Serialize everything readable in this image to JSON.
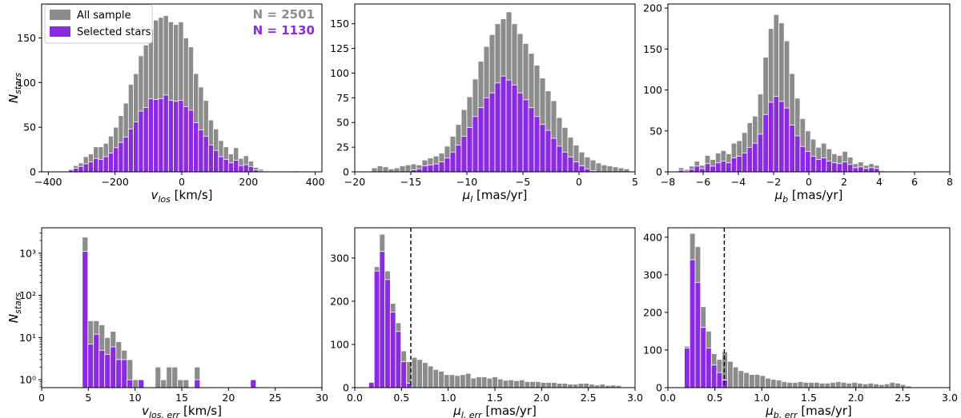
{
  "colors": {
    "all_sample": "#8c8c8c",
    "selected": "#8a2be2",
    "n_all_text": "#8c8c8c",
    "n_selected_text": "#8a2be2",
    "cut_line": "#000000"
  },
  "legend": {
    "all_label": "All sample",
    "selected_label": "Selected stars",
    "n_all": "N = 2501",
    "n_selected": "N = 1130",
    "placement": "upper-left"
  },
  "chart_data": [
    {
      "id": "vlos",
      "type": "bar",
      "xlabel": "v_los [km/s]",
      "xlabel_main": "v",
      "xlabel_sub": "los",
      "xlabel_unit": " [km/s]",
      "ylabel": "N_stars",
      "ylabel_main": "N",
      "ylabel_sub": "stars",
      "xlim": [
        -420,
        420
      ],
      "ylim": [
        0,
        188
      ],
      "yscale": "linear",
      "xticks": [
        -400,
        -200,
        0,
        200,
        400
      ],
      "xtick_labels": [
        "−400",
        "−200",
        "0",
        "200",
        "400"
      ],
      "yticks": [
        0,
        50,
        100,
        150
      ],
      "ytick_labels": [
        "0",
        "50",
        "100",
        "150"
      ],
      "bin_start": -340,
      "bin_width": 15,
      "series": [
        {
          "name": "All sample",
          "values": [
            3,
            7,
            10,
            17,
            20,
            28,
            28,
            32,
            40,
            50,
            63,
            77,
            98,
            110,
            130,
            142,
            160,
            170,
            173,
            175,
            168,
            165,
            168,
            150,
            140,
            110,
            95,
            80,
            58,
            48,
            35,
            28,
            20,
            27,
            15,
            18,
            12,
            5,
            3,
            1,
            0,
            0,
            0,
            0,
            0,
            1,
            0
          ]
        },
        {
          "name": "Selected stars",
          "values": [
            2,
            4,
            6,
            9,
            11,
            15,
            14,
            17,
            21,
            27,
            33,
            39,
            48,
            56,
            68,
            72,
            82,
            81,
            82,
            86,
            80,
            79,
            80,
            73,
            69,
            55,
            47,
            40,
            30,
            24,
            17,
            14,
            10,
            13,
            7,
            8,
            6,
            2,
            1,
            0,
            0,
            0,
            0,
            0,
            0,
            0,
            0
          ]
        }
      ]
    },
    {
      "id": "mul",
      "type": "bar",
      "xlabel": "μ_l [mas/yr]",
      "xlabel_main": "μ",
      "xlabel_sub": "l",
      "xlabel_unit": " [mas/yr]",
      "ylabel": "",
      "xlim": [
        -20,
        5
      ],
      "ylim": [
        0,
        170
      ],
      "yscale": "linear",
      "xticks": [
        -20,
        -15,
        -10,
        -5,
        0,
        5
      ],
      "xtick_labels": [
        "−20",
        "−15",
        "−10",
        "−5",
        "0",
        "5"
      ],
      "yticks": [
        0,
        25,
        50,
        75,
        100,
        125,
        150
      ],
      "ytick_labels": [
        "0",
        "25",
        "50",
        "75",
        "100",
        "125",
        "150"
      ],
      "bin_start": -18.5,
      "bin_width": 0.5,
      "series": [
        {
          "name": "All sample",
          "values": [
            4,
            6,
            5,
            3,
            4,
            6,
            7,
            8,
            7,
            12,
            14,
            16,
            19,
            26,
            36,
            48,
            63,
            76,
            94,
            112,
            127,
            139,
            150,
            155,
            162,
            150,
            140,
            130,
            120,
            108,
            95,
            82,
            72,
            55,
            45,
            35,
            27,
            20,
            15,
            12,
            9,
            7,
            6,
            5,
            4,
            3
          ]
        },
        {
          "name": "Selected stars",
          "values": [
            0,
            0,
            0,
            0,
            0,
            0,
            0,
            2,
            3,
            6,
            7,
            8,
            10,
            14,
            20,
            27,
            36,
            45,
            56,
            65,
            75,
            80,
            90,
            97,
            93,
            88,
            80,
            73,
            65,
            56,
            48,
            42,
            34,
            26,
            20,
            15,
            10,
            6,
            3,
            1,
            0,
            0,
            0,
            0,
            0,
            0
          ]
        }
      ]
    },
    {
      "id": "mub",
      "type": "bar",
      "xlabel": "μ_b [mas/yr]",
      "xlabel_main": "μ",
      "xlabel_sub": "b",
      "xlabel_unit": " [mas/yr]",
      "ylabel": "",
      "xlim": [
        -8,
        8
      ],
      "ylim": [
        0,
        205
      ],
      "yscale": "linear",
      "xticks": [
        -8,
        -6,
        -4,
        -2,
        0,
        2,
        4,
        6,
        8
      ],
      "xtick_labels": [
        "−8",
        "−6",
        "−4",
        "−2",
        "0",
        "2",
        "4",
        "6",
        "8"
      ],
      "yticks": [
        0,
        50,
        100,
        150,
        200
      ],
      "ytick_labels": [
        "0",
        "50",
        "100",
        "150",
        "200"
      ],
      "bin_start": -7.4,
      "bin_width": 0.3,
      "series": [
        {
          "name": "All sample",
          "values": [
            5,
            3,
            7,
            13,
            8,
            20,
            15,
            23,
            26,
            22,
            35,
            38,
            48,
            60,
            68,
            95,
            140,
            175,
            192,
            182,
            160,
            120,
            90,
            65,
            50,
            40,
            30,
            35,
            28,
            22,
            20,
            25,
            18,
            10,
            12,
            8,
            10,
            8,
            2
          ]
        },
        {
          "name": "Selected stars",
          "values": [
            2,
            1,
            3,
            7,
            4,
            10,
            7,
            11,
            13,
            11,
            17,
            19,
            23,
            30,
            35,
            46,
            70,
            85,
            92,
            86,
            78,
            57,
            44,
            31,
            25,
            19,
            15,
            17,
            13,
            11,
            10,
            12,
            9,
            5,
            6,
            4,
            5,
            4,
            1
          ]
        }
      ]
    },
    {
      "id": "vlos_err",
      "type": "bar",
      "xlabel": "v_los,err [km/s]",
      "xlabel_main": "v",
      "xlabel_sub": "los, err",
      "xlabel_unit": " [km/s]",
      "ylabel": "N_stars",
      "ylabel_main": "N",
      "ylabel_sub": "stars",
      "xlim": [
        0,
        30
      ],
      "ylim": [
        0.65,
        4000
      ],
      "yscale": "log",
      "xticks": [
        0,
        5,
        10,
        15,
        20,
        25,
        30
      ],
      "xtick_labels": [
        "0",
        "5",
        "10",
        "15",
        "20",
        "25",
        "30"
      ],
      "yticks": [
        1,
        10,
        100,
        1000
      ],
      "ytick_labels": [
        "10⁰",
        "10¹",
        "10²",
        "10³"
      ],
      "bin_start": 4.35,
      "bin_width": 0.6,
      "series": [
        {
          "name": "All sample",
          "values": [
            2400,
            25,
            25,
            20,
            10,
            14,
            8,
            5,
            3,
            1,
            0,
            0,
            0,
            2,
            1,
            2,
            2,
            1,
            1,
            0,
            2,
            0,
            0,
            0,
            0,
            0,
            0,
            0,
            0,
            0,
            1
          ]
        },
        {
          "name": "Selected stars",
          "values": [
            1100,
            7,
            12,
            5,
            4,
            6,
            3,
            3,
            1,
            0,
            1,
            0,
            0,
            0,
            0,
            0,
            0,
            0,
            0,
            0,
            1,
            0,
            0,
            0,
            0,
            0,
            0,
            0,
            0,
            0,
            1
          ]
        }
      ]
    },
    {
      "id": "mul_err",
      "type": "bar",
      "xlabel": "μ_l,err [mas/yr]",
      "xlabel_main": "μ",
      "xlabel_sub": "l, err",
      "xlabel_unit": " [mas/yr]",
      "ylabel": "",
      "xlim": [
        0,
        3
      ],
      "ylim": [
        0,
        370
      ],
      "yscale": "linear",
      "xticks": [
        0,
        0.5,
        1,
        1.5,
        2,
        2.5,
        3
      ],
      "xtick_labels": [
        "0.0",
        "0.5",
        "1.0",
        "1.5",
        "2.0",
        "2.5",
        "3.0"
      ],
      "yticks": [
        0,
        100,
        200,
        300
      ],
      "ytick_labels": [
        "0",
        "100",
        "200",
        "300"
      ],
      "cut": 0.6,
      "bin_start": 0.15,
      "bin_width": 0.0575,
      "series": [
        {
          "name": "All sample",
          "values": [
            12,
            280,
            355,
            270,
            195,
            150,
            85,
            60,
            70,
            65,
            58,
            50,
            42,
            38,
            30,
            30,
            28,
            30,
            33,
            22,
            25,
            25,
            22,
            25,
            20,
            17,
            18,
            16,
            18,
            14,
            14,
            14,
            12,
            12,
            12,
            10,
            10,
            8,
            8,
            10,
            10,
            8,
            6,
            8,
            5,
            6,
            5
          ]
        },
        {
          "name": "Selected stars",
          "values": [
            12,
            270,
            315,
            250,
            175,
            130,
            60,
            10,
            0,
            0,
            0,
            0,
            0,
            0,
            0,
            0,
            0,
            0,
            0,
            0,
            0,
            0,
            0,
            0,
            0,
            0,
            0,
            0,
            0,
            0,
            0,
            0,
            0,
            0,
            0,
            0,
            0,
            0,
            0,
            0,
            0,
            0,
            0,
            0,
            0,
            0,
            0
          ]
        }
      ]
    },
    {
      "id": "mub_err",
      "type": "bar",
      "xlabel": "μ_b,err [mas/yr]",
      "xlabel_main": "μ",
      "xlabel_sub": "b, err",
      "xlabel_unit": " [mas/yr]",
      "ylabel": "",
      "xlim": [
        0,
        3
      ],
      "ylim": [
        0,
        425
      ],
      "yscale": "linear",
      "xticks": [
        0,
        0.5,
        1,
        1.5,
        2,
        2.5,
        3
      ],
      "xtick_labels": [
        "0.0",
        "0.5",
        "1.0",
        "1.5",
        "2.0",
        "2.5",
        "3.0"
      ],
      "yticks": [
        0,
        100,
        200,
        300,
        400
      ],
      "ytick_labels": [
        "0",
        "100",
        "200",
        "300",
        "400"
      ],
      "cut": 0.6,
      "bin_start": 0.175,
      "bin_width": 0.0575,
      "series": [
        {
          "name": "All sample",
          "values": [
            110,
            410,
            375,
            215,
            150,
            90,
            75,
            95,
            70,
            55,
            45,
            40,
            35,
            35,
            32,
            25,
            22,
            20,
            16,
            14,
            14,
            16,
            14,
            14,
            14,
            12,
            12,
            14,
            16,
            14,
            12,
            14,
            12,
            10,
            12,
            10,
            8,
            10,
            14,
            12,
            8,
            4
          ]
        },
        {
          "name": "Selected stars",
          "values": [
            105,
            340,
            280,
            160,
            105,
            60,
            40,
            20,
            0,
            0,
            0,
            0,
            0,
            0,
            0,
            0,
            0,
            0,
            0,
            0,
            0,
            0,
            0,
            0,
            0,
            0,
            0,
            0,
            0,
            0,
            0,
            0,
            0,
            0,
            0,
            0,
            0,
            0,
            0,
            0,
            0,
            0
          ]
        }
      ]
    }
  ]
}
